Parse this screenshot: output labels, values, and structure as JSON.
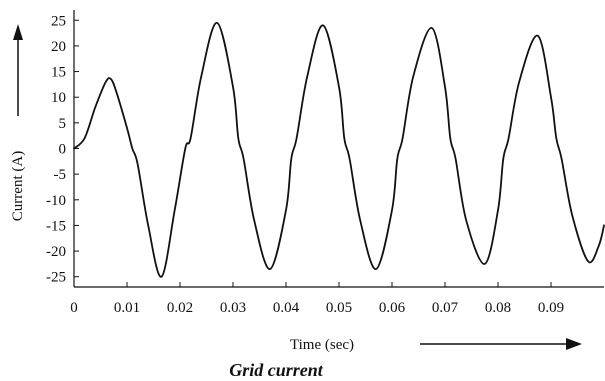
{
  "figure": {
    "caption": "Grid current"
  },
  "chart_data": {
    "type": "line",
    "xlabel": "Time (sec)",
    "ylabel": "Current (A)",
    "xlim": [
      0,
      0.1
    ],
    "ylim": [
      -27,
      27
    ],
    "x_ticks": [
      0,
      0.01,
      0.02,
      0.03,
      0.04,
      0.05,
      0.06,
      0.07,
      0.08,
      0.09
    ],
    "x_tick_labels": [
      "0",
      "0.01",
      "0.02",
      "0.03",
      "0.04",
      "0.05",
      "0.06",
      "0.07",
      "0.08",
      "0.09"
    ],
    "y_ticks": [
      25,
      20,
      15,
      10,
      5,
      0,
      -5,
      -10,
      -15,
      -20,
      -25
    ],
    "y_tick_labels": [
      "25",
      "20",
      "15",
      "10",
      "5",
      "0",
      "-5",
      "-10",
      "-15",
      "-20",
      "-25"
    ],
    "grid": false,
    "series": [
      {
        "x": [
          0,
          0.002,
          0.004,
          0.006,
          0.007,
          0.008,
          0.01,
          0.011,
          0.012,
          0.014,
          0.0165,
          0.019,
          0.021,
          0.022,
          0.024,
          0.027,
          0.03,
          0.031,
          0.032,
          0.034,
          0.037,
          0.04,
          0.041,
          0.042,
          0.044,
          0.047,
          0.05,
          0.051,
          0.052,
          0.054,
          0.057,
          0.06,
          0.061,
          0.062,
          0.064,
          0.0675,
          0.07,
          0.071,
          0.072,
          0.074,
          0.0775,
          0.08,
          0.081,
          0.082,
          0.084,
          0.0875,
          0.09,
          0.091,
          0.092,
          0.094,
          0.097,
          0.099,
          0.1
        ],
        "y": [
          0,
          2,
          8,
          13,
          13.5,
          11,
          4,
          0,
          -3,
          -15,
          -25,
          -12,
          0,
          2,
          14,
          24.5,
          12,
          2,
          -2,
          -14,
          -23.5,
          -12,
          -2,
          2,
          14,
          24,
          12,
          2,
          -2,
          -14,
          -23.5,
          -12,
          -2,
          2,
          14,
          23.5,
          12,
          2,
          -2,
          -14,
          -22.5,
          -12,
          -2,
          2,
          13,
          22,
          10,
          2,
          -2,
          -13,
          -22,
          -19,
          -15
        ]
      }
    ],
    "colors": {
      "line": "#111111",
      "axis": "#111111"
    }
  }
}
